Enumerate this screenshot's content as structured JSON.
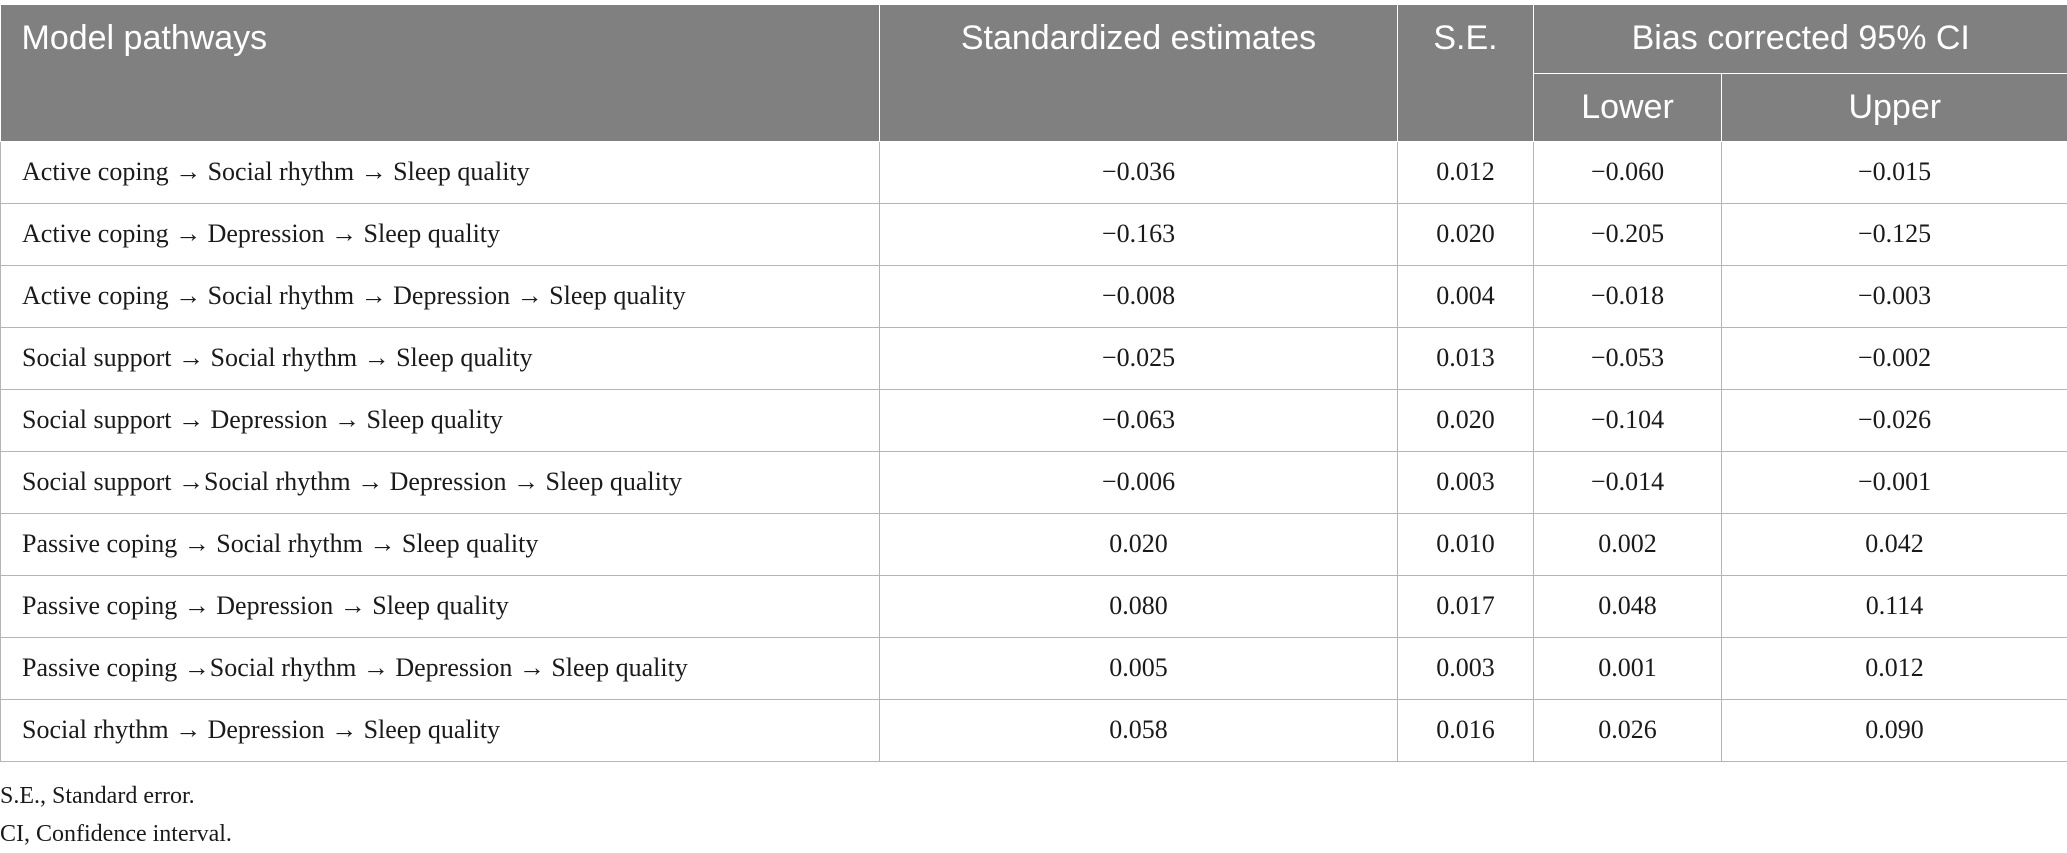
{
  "table": {
    "headers": {
      "pathway": "Model pathways",
      "estimate": "Standardized estimates",
      "se": "S.E.",
      "ci_group": "Bias corrected 95% CI",
      "lower": "Lower",
      "upper": "Upper"
    },
    "rows": [
      {
        "pathway": "Active coping → Social rhythm → Sleep quality",
        "estimate": "−0.036",
        "se": "0.012",
        "lower": "−0.060",
        "upper": "−0.015"
      },
      {
        "pathway": "Active coping → Depression → Sleep quality",
        "estimate": "−0.163",
        "se": "0.020",
        "lower": "−0.205",
        "upper": "−0.125"
      },
      {
        "pathway": "Active coping → Social rhythm → Depression → Sleep quality",
        "estimate": "−0.008",
        "se": "0.004",
        "lower": "−0.018",
        "upper": "−0.003"
      },
      {
        "pathway": "Social support → Social rhythm → Sleep quality",
        "estimate": "−0.025",
        "se": "0.013",
        "lower": "−0.053",
        "upper": "−0.002"
      },
      {
        "pathway": "Social support → Depression → Sleep quality",
        "estimate": "−0.063",
        "se": "0.020",
        "lower": "−0.104",
        "upper": "−0.026"
      },
      {
        "pathway": "Social support →Social rhythm → Depression → Sleep quality",
        "estimate": "−0.006",
        "se": "0.003",
        "lower": "−0.014",
        "upper": "−0.001"
      },
      {
        "pathway": "Passive coping → Social rhythm → Sleep quality",
        "estimate": "0.020",
        "se": "0.010",
        "lower": "0.002",
        "upper": "0.042"
      },
      {
        "pathway": "Passive coping → Depression → Sleep quality",
        "estimate": "0.080",
        "se": "0.017",
        "lower": "0.048",
        "upper": "0.114"
      },
      {
        "pathway": "Passive coping →Social rhythm → Depression → Sleep quality",
        "estimate": "0.005",
        "se": "0.003",
        "lower": "0.001",
        "upper": "0.012"
      },
      {
        "pathway": "Social rhythm → Depression → Sleep quality",
        "estimate": "0.058",
        "se": "0.016",
        "lower": "0.026",
        "upper": "0.090"
      }
    ]
  },
  "notes": [
    "S.E., Standard error.",
    "CI, Confidence interval."
  ]
}
